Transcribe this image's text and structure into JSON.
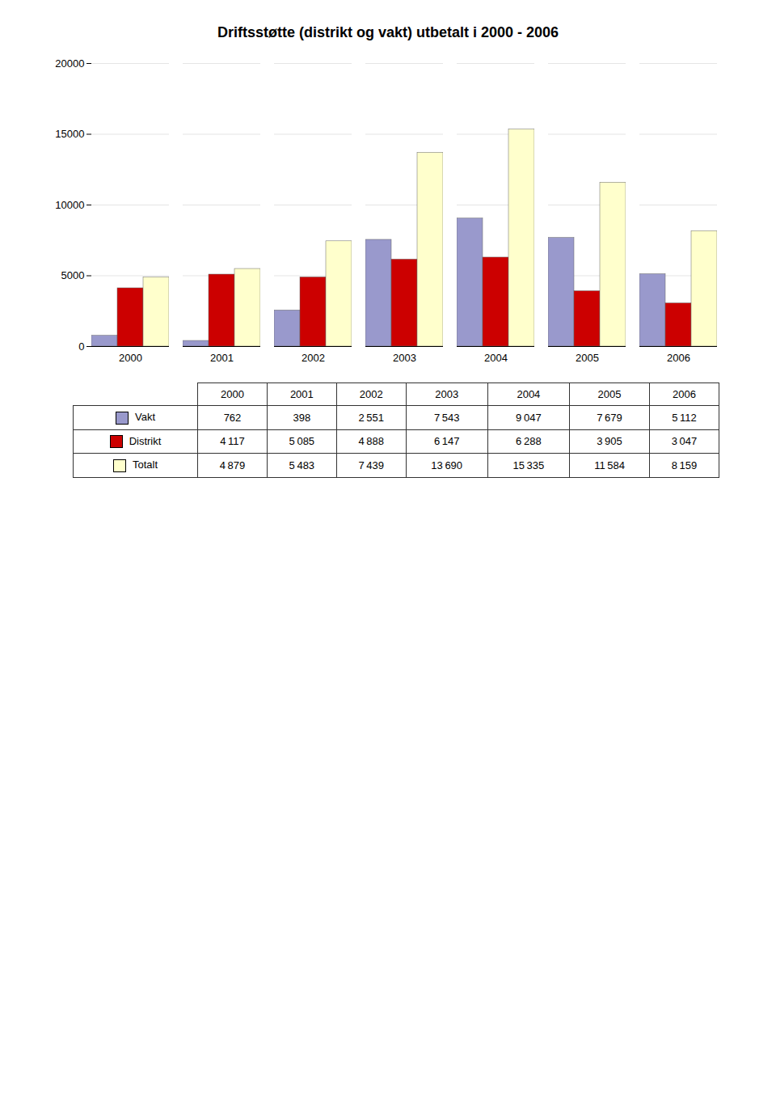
{
  "chart_data": {
    "type": "bar",
    "title": "Driftsstøtte (distrikt og vakt) utbetalt i 2000 - 2006",
    "categories": [
      "2000",
      "2001",
      "2002",
      "2003",
      "2004",
      "2005",
      "2006"
    ],
    "series": [
      {
        "name": "Vakt",
        "color": "#9999cc",
        "values": [
          762,
          398,
          2551,
          7543,
          9047,
          7679,
          5112
        ],
        "value_labels": [
          "762",
          "398",
          "2 551",
          "7 543",
          "9 047",
          "7 679",
          "5 112"
        ]
      },
      {
        "name": "Distrikt",
        "color": "#cc0000",
        "values": [
          4117,
          5085,
          4888,
          6147,
          6288,
          3905,
          3047
        ],
        "value_labels": [
          "4 117",
          "5 085",
          "4 888",
          "6 147",
          "6 288",
          "3 905",
          "3 047"
        ]
      },
      {
        "name": "Totalt",
        "color": "#ffffcc",
        "values": [
          4879,
          5483,
          7439,
          13690,
          15335,
          11584,
          8159
        ],
        "value_labels": [
          "4 879",
          "5 483",
          "7 439",
          "13 690",
          "15 335",
          "11 584",
          "8 159"
        ]
      }
    ],
    "ylim": [
      0,
      20000
    ],
    "yticks": [
      0,
      5000,
      10000,
      15000,
      20000
    ],
    "grid": true
  }
}
